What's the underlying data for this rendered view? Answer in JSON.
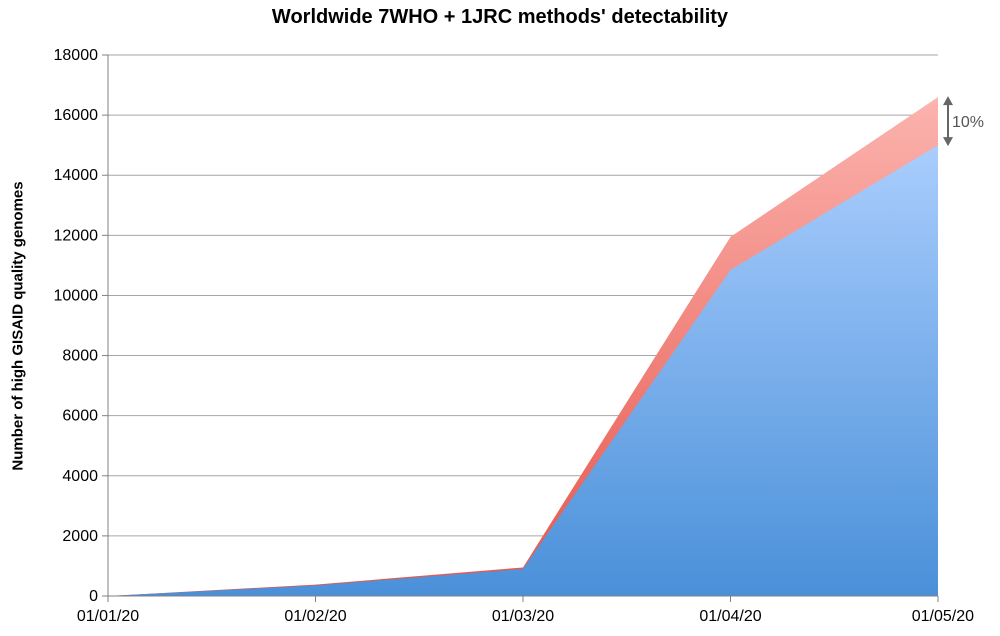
{
  "chart_data": {
    "type": "area",
    "title": "Worldwide 7WHO + 1JRC methods' detectability",
    "xlabel": "",
    "ylabel": "Number of high GISAID quality genomes",
    "x": [
      "01/01/20",
      "01/02/20",
      "01/03/20",
      "01/04/20",
      "01/05/20"
    ],
    "series": [
      {
        "values": [
          0,
          350,
          900,
          10850,
          15000
        ],
        "color": "#4a90d9"
      },
      {
        "values": [
          0,
          380,
          950,
          11950,
          16600
        ],
        "color": "#f28b82"
      }
    ],
    "ylim": [
      0,
      18000
    ],
    "yticks": [
      0,
      2000,
      4000,
      6000,
      8000,
      10000,
      12000,
      14000,
      16000,
      18000
    ],
    "grid": true,
    "annotation": "10%"
  }
}
